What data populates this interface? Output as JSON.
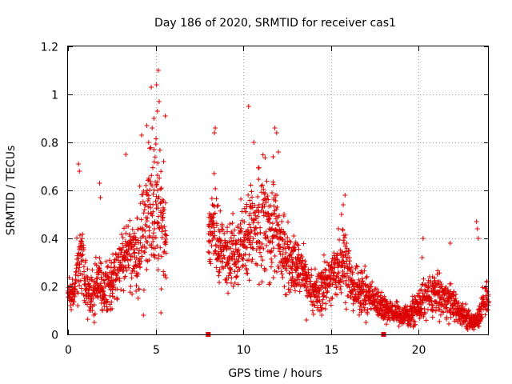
{
  "chart_data": {
    "type": "scatter",
    "title": "Day 186 of 2020, SRMTID for receiver cas1",
    "xlabel": "GPS time / hours",
    "ylabel": "SRMTID / TECUs",
    "xlim": [
      0,
      24
    ],
    "ylim": [
      0,
      1.2
    ],
    "xticks": [
      0,
      5,
      10,
      15,
      20
    ],
    "xtick_labels": [
      "0",
      "5",
      "10",
      "15",
      "20"
    ],
    "yticks": [
      0,
      0.2,
      0.4,
      0.6,
      0.8,
      1.0,
      1.2
    ],
    "ytick_labels": [
      "0",
      "0.2",
      "0.4",
      "0.6",
      "0.8",
      "1",
      "1.2"
    ],
    "grid": true,
    "marker": "plus",
    "color": "#dd0000",
    "data_gap_markers": [
      {
        "x": 8.0,
        "y": 0
      },
      {
        "x": 18.0,
        "y": 0
      }
    ],
    "envelope": {
      "x": [
        0.0,
        0.3,
        0.5,
        0.8,
        1.0,
        1.3,
        1.5,
        1.8,
        2.0,
        2.3,
        2.5,
        2.8,
        3.0,
        3.3,
        3.5,
        3.8,
        4.0,
        4.3,
        4.5,
        4.8,
        5.0,
        5.3,
        5.6,
        8.0,
        8.3,
        8.6,
        9.0,
        9.4,
        9.8,
        10.2,
        10.6,
        11.0,
        11.4,
        11.8,
        12.2,
        12.6,
        13.0,
        13.4,
        13.8,
        14.2,
        14.6,
        15.0,
        15.4,
        15.8,
        16.2,
        16.6,
        17.0,
        17.4,
        17.8,
        18.2,
        18.6,
        19.0,
        19.4,
        19.8,
        20.2,
        20.6,
        21.0,
        21.4,
        21.8,
        22.2,
        22.6,
        23.0,
        23.4,
        23.8,
        24.0
      ],
      "center": [
        0.17,
        0.16,
        0.26,
        0.3,
        0.2,
        0.17,
        0.2,
        0.22,
        0.18,
        0.2,
        0.22,
        0.26,
        0.3,
        0.32,
        0.36,
        0.3,
        0.36,
        0.45,
        0.5,
        0.52,
        0.55,
        0.45,
        0.4,
        0.4,
        0.48,
        0.36,
        0.34,
        0.34,
        0.36,
        0.4,
        0.44,
        0.46,
        0.44,
        0.44,
        0.36,
        0.3,
        0.28,
        0.26,
        0.2,
        0.17,
        0.2,
        0.24,
        0.3,
        0.32,
        0.2,
        0.18,
        0.17,
        0.15,
        0.12,
        0.1,
        0.09,
        0.08,
        0.08,
        0.1,
        0.14,
        0.16,
        0.17,
        0.16,
        0.14,
        0.1,
        0.08,
        0.05,
        0.07,
        0.15,
        0.16
      ],
      "spread": [
        0.05,
        0.06,
        0.1,
        0.14,
        0.1,
        0.08,
        0.1,
        0.1,
        0.08,
        0.1,
        0.1,
        0.1,
        0.1,
        0.12,
        0.14,
        0.14,
        0.18,
        0.2,
        0.24,
        0.28,
        0.28,
        0.22,
        0.18,
        0.08,
        0.16,
        0.14,
        0.12,
        0.12,
        0.14,
        0.18,
        0.2,
        0.22,
        0.2,
        0.18,
        0.14,
        0.12,
        0.1,
        0.1,
        0.08,
        0.08,
        0.1,
        0.1,
        0.14,
        0.14,
        0.08,
        0.08,
        0.08,
        0.06,
        0.05,
        0.05,
        0.04,
        0.04,
        0.04,
        0.05,
        0.07,
        0.08,
        0.08,
        0.07,
        0.07,
        0.05,
        0.04,
        0.03,
        0.04,
        0.08,
        0.07
      ]
    },
    "points": [
      {
        "x": 4.75,
        "y": 1.03
      },
      {
        "x": 5.15,
        "y": 1.1
      },
      {
        "x": 5.05,
        "y": 1.04
      },
      {
        "x": 5.2,
        "y": 0.97
      },
      {
        "x": 5.1,
        "y": 0.93
      },
      {
        "x": 5.55,
        "y": 0.91
      },
      {
        "x": 4.9,
        "y": 0.9
      },
      {
        "x": 4.8,
        "y": 0.86
      },
      {
        "x": 4.5,
        "y": 0.87
      },
      {
        "x": 4.2,
        "y": 0.83
      },
      {
        "x": 4.6,
        "y": 0.8
      },
      {
        "x": 3.3,
        "y": 0.75
      },
      {
        "x": 0.6,
        "y": 0.71
      },
      {
        "x": 0.65,
        "y": 0.68
      },
      {
        "x": 1.8,
        "y": 0.63
      },
      {
        "x": 1.85,
        "y": 0.57
      },
      {
        "x": 8.4,
        "y": 0.86
      },
      {
        "x": 8.35,
        "y": 0.84
      },
      {
        "x": 10.3,
        "y": 0.95
      },
      {
        "x": 11.8,
        "y": 0.86
      },
      {
        "x": 11.9,
        "y": 0.84
      },
      {
        "x": 12.0,
        "y": 0.76
      },
      {
        "x": 11.7,
        "y": 0.74
      },
      {
        "x": 10.6,
        "y": 0.8
      },
      {
        "x": 15.8,
        "y": 0.58
      },
      {
        "x": 15.7,
        "y": 0.54
      },
      {
        "x": 15.6,
        "y": 0.5
      },
      {
        "x": 20.25,
        "y": 0.4
      },
      {
        "x": 21.8,
        "y": 0.38
      },
      {
        "x": 23.3,
        "y": 0.47
      },
      {
        "x": 23.35,
        "y": 0.44
      },
      {
        "x": 23.4,
        "y": 0.4
      },
      {
        "x": 20.2,
        "y": 0.32
      },
      {
        "x": 4.3,
        "y": 0.08
      },
      {
        "x": 5.3,
        "y": 0.09
      },
      {
        "x": 1.5,
        "y": 0.05
      },
      {
        "x": 13.6,
        "y": 0.06
      },
      {
        "x": 17.0,
        "y": 0.05
      },
      {
        "x": 22.8,
        "y": 0.02
      }
    ]
  }
}
